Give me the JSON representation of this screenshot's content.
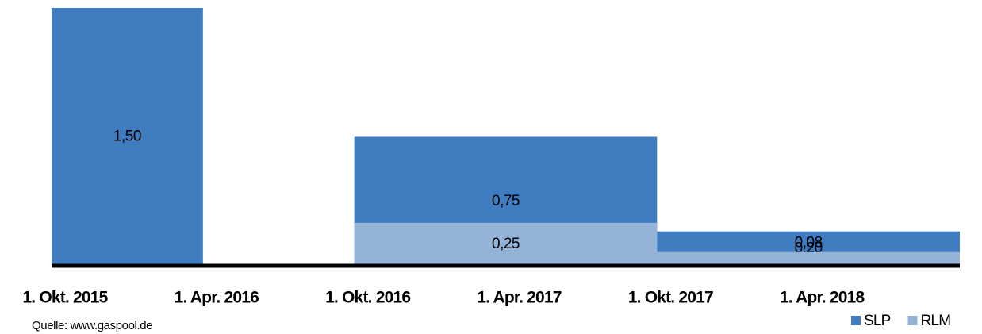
{
  "chart_data": {
    "type": "bar",
    "categories": [
      "1. Okt. 2015",
      "1. Apr. 2016",
      "1. Okt. 2016",
      "1. Apr. 2017",
      "1. Okt. 2017",
      "1. Apr. 2018"
    ],
    "series": [
      {
        "name": "SLP",
        "color": "#3f7cc0",
        "values": [
          1.5,
          null,
          0.75,
          0.75,
          0.2,
          0.2
        ],
        "value_labels": [
          "1,50",
          null,
          "0,75",
          null,
          "0,20",
          null
        ]
      },
      {
        "name": "RLM",
        "color": "#95b3d7",
        "values": [
          null,
          null,
          0.25,
          0.25,
          0.08,
          0.08
        ],
        "value_labels": [
          null,
          null,
          "0,25",
          null,
          "0,08",
          null
        ]
      }
    ],
    "ylim": [
      0,
      1.5
    ],
    "legend": "bottom-right",
    "source": "Quelle: www.gaspool.de"
  }
}
